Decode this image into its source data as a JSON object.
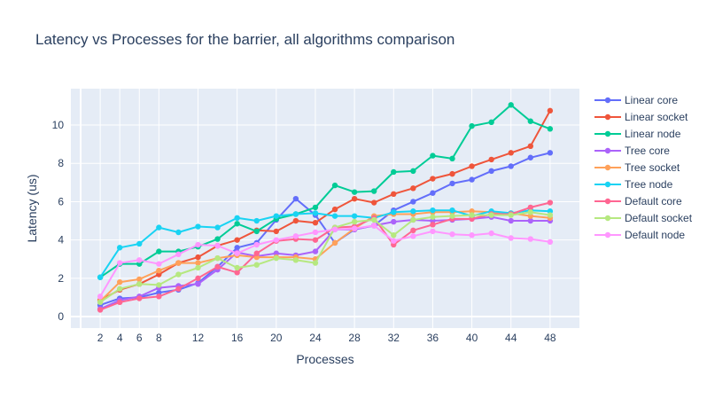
{
  "chart_data": {
    "type": "line",
    "title": "Latency vs Processes for the barrier, all algorithms comparison",
    "xlabel": "Processes",
    "ylabel": "Latency (us)",
    "xlim": [
      -1,
      51
    ],
    "ylim": [
      -0.6,
      11.9
    ],
    "xticks": [
      2,
      4,
      6,
      8,
      12,
      16,
      20,
      24,
      28,
      32,
      36,
      40,
      44,
      48
    ],
    "yticks": [
      0,
      2,
      4,
      6,
      8,
      10
    ],
    "legend_position": "right",
    "grid": true,
    "x": [
      2,
      4,
      6,
      8,
      10,
      12,
      14,
      16,
      18,
      20,
      22,
      24,
      26,
      28,
      30,
      32,
      34,
      36,
      38,
      40,
      42,
      44,
      46,
      48
    ],
    "series": [
      {
        "name": "Linear core",
        "color": "#636efa",
        "values": [
          0.6,
          0.95,
          1.0,
          1.25,
          1.4,
          1.75,
          2.6,
          3.6,
          3.85,
          5.05,
          6.15,
          5.3,
          3.85,
          4.55,
          4.75,
          5.55,
          6.0,
          6.45,
          6.95,
          7.15,
          7.6,
          7.85,
          8.3,
          8.55
        ]
      },
      {
        "name": "Linear socket",
        "color": "#ef553b",
        "values": [
          0.85,
          1.4,
          1.7,
          2.2,
          2.8,
          3.1,
          3.7,
          4.0,
          4.5,
          4.45,
          5.0,
          4.9,
          5.6,
          6.15,
          5.95,
          6.4,
          6.7,
          7.2,
          7.45,
          7.85,
          8.2,
          8.55,
          8.9,
          10.75
        ]
      },
      {
        "name": "Linear node",
        "color": "#00cc96",
        "values": [
          2.05,
          2.75,
          2.75,
          3.4,
          3.4,
          3.65,
          4.05,
          4.85,
          4.45,
          5.1,
          5.35,
          5.7,
          6.85,
          6.5,
          6.55,
          7.55,
          7.6,
          8.4,
          8.25,
          9.95,
          10.15,
          11.05,
          10.2,
          9.8
        ]
      },
      {
        "name": "Tree core",
        "color": "#ab63fa",
        "values": [
          0.4,
          0.85,
          1.05,
          1.5,
          1.6,
          1.7,
          2.45,
          3.35,
          3.15,
          3.3,
          3.2,
          3.4,
          4.55,
          4.55,
          4.75,
          4.95,
          5.05,
          5.0,
          5.05,
          5.1,
          5.2,
          5.0,
          5.0,
          5.0
        ]
      },
      {
        "name": "Tree socket",
        "color": "#ffa15a",
        "values": [
          0.8,
          1.8,
          1.95,
          2.4,
          2.8,
          2.8,
          3.05,
          3.2,
          3.1,
          3.1,
          3.1,
          3.0,
          3.85,
          4.6,
          5.25,
          5.35,
          5.35,
          5.45,
          5.45,
          5.5,
          5.45,
          5.4,
          5.25,
          5.15
        ]
      },
      {
        "name": "Tree node",
        "color": "#19d3f3",
        "values": [
          2.05,
          3.6,
          3.8,
          4.65,
          4.4,
          4.7,
          4.65,
          5.15,
          5.0,
          5.25,
          5.35,
          5.4,
          5.25,
          5.25,
          5.15,
          5.45,
          5.5,
          5.55,
          5.55,
          5.25,
          5.5,
          5.4,
          5.55,
          5.5
        ]
      },
      {
        "name": "Default core",
        "color": "#ff6692",
        "values": [
          0.35,
          0.75,
          0.95,
          1.05,
          1.45,
          2.0,
          2.6,
          2.3,
          3.3,
          3.95,
          4.05,
          4.0,
          4.65,
          4.7,
          5.15,
          3.75,
          4.5,
          4.8,
          5.1,
          5.1,
          5.35,
          5.35,
          5.7,
          5.95
        ]
      },
      {
        "name": "Default socket",
        "color": "#b6e880",
        "values": [
          0.75,
          1.45,
          1.7,
          1.65,
          2.2,
          2.55,
          3.05,
          2.55,
          2.7,
          3.05,
          2.95,
          2.8,
          4.65,
          4.95,
          5.05,
          4.25,
          5.05,
          5.2,
          5.25,
          5.3,
          5.3,
          5.3,
          5.45,
          5.3
        ]
      },
      {
        "name": "Default node",
        "color": "#ff97ff",
        "values": [
          1.05,
          2.8,
          2.95,
          2.75,
          3.25,
          3.75,
          3.7,
          3.3,
          3.75,
          4.0,
          4.2,
          4.4,
          4.55,
          4.6,
          4.75,
          3.95,
          4.2,
          4.45,
          4.3,
          4.25,
          4.35,
          4.1,
          4.05,
          3.9
        ]
      }
    ]
  }
}
